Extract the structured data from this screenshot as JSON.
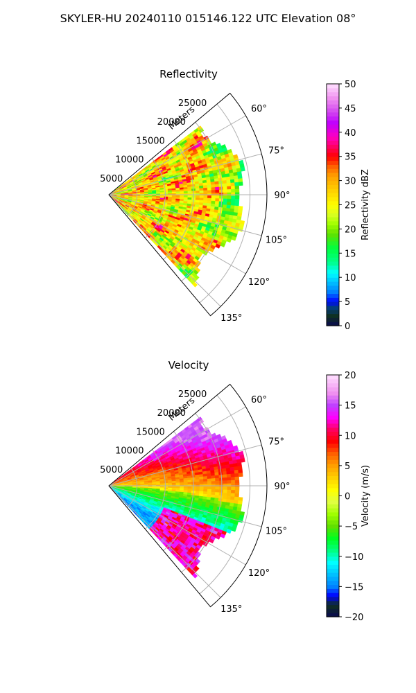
{
  "figure": {
    "suptitle": "SKYLER-HU  20240110  015146.122 UTC Elevation 08°"
  },
  "chart_data": [
    {
      "type": "heatmap",
      "projection": "polar-sector",
      "title": "Reflectivity",
      "range_label": "Meters",
      "range_ticks": [
        5000,
        10000,
        15000,
        20000,
        25000
      ],
      "range_tick_labels": [
        "5000",
        "10000",
        "15000",
        "20000",
        "25000"
      ],
      "azimuth_range_deg": [
        50,
        140
      ],
      "azimuth_ticks_deg": [
        60,
        75,
        90,
        105,
        120,
        135
      ],
      "azimuth_tick_labels": [
        "60°",
        "75°",
        "90°",
        "105°",
        "120°",
        "135°"
      ],
      "max_range_m": 28000,
      "grid": true,
      "colorbar": {
        "label": "Reflectivity dBZ",
        "range": [
          0,
          50
        ],
        "ticks": [
          0,
          5,
          10,
          15,
          20,
          25,
          30,
          35,
          40,
          45,
          50
        ],
        "tick_labels": [
          "0",
          "5",
          "10",
          "15",
          "20",
          "25",
          "30",
          "35",
          "40",
          "45",
          "50"
        ],
        "stops": [
          [
            0,
            "#0a0a50"
          ],
          [
            2,
            "#103020"
          ],
          [
            4,
            "#00408a"
          ],
          [
            5,
            "#0000ff"
          ],
          [
            7,
            "#0080ff"
          ],
          [
            9,
            "#00c0ff"
          ],
          [
            11,
            "#00ffff"
          ],
          [
            13,
            "#00ff90"
          ],
          [
            16,
            "#00ff40"
          ],
          [
            19,
            "#60e000"
          ],
          [
            21,
            "#a0ff00"
          ],
          [
            23,
            "#d8ff20"
          ],
          [
            25,
            "#ffff00"
          ],
          [
            28,
            "#ffd000"
          ],
          [
            31,
            "#ffa000"
          ],
          [
            33,
            "#ff6000"
          ],
          [
            35,
            "#ff0000"
          ],
          [
            37,
            "#ff0060"
          ],
          [
            39,
            "#ff00c0"
          ],
          [
            42,
            "#c000ff"
          ],
          [
            44,
            "#d040f0"
          ],
          [
            47,
            "#f090f0"
          ],
          [
            50,
            "#ffe0ff"
          ]
        ]
      }
    },
    {
      "type": "heatmap",
      "projection": "polar-sector",
      "title": "Velocity",
      "range_label": "Meters",
      "range_ticks": [
        5000,
        10000,
        15000,
        20000,
        25000
      ],
      "range_tick_labels": [
        "5000",
        "10000",
        "15000",
        "20000",
        "25000"
      ],
      "azimuth_range_deg": [
        50,
        140
      ],
      "azimuth_ticks_deg": [
        60,
        75,
        90,
        105,
        120,
        135
      ],
      "azimuth_tick_labels": [
        "60°",
        "75°",
        "90°",
        "105°",
        "120°",
        "135°"
      ],
      "max_range_m": 28000,
      "grid": true,
      "colorbar": {
        "label": "Velocity (m/s)",
        "range": [
          -20,
          20
        ],
        "ticks": [
          -20,
          -15,
          -10,
          -5,
          0,
          5,
          10,
          15,
          20
        ],
        "tick_labels": [
          "−20",
          "−15",
          "−10",
          "−5",
          "0",
          "5",
          "10",
          "15",
          "20"
        ],
        "stops": [
          [
            -20,
            "#0a0a50"
          ],
          [
            -18,
            "#103020"
          ],
          [
            -16.5,
            "#0000ff"
          ],
          [
            -15,
            "#0080ff"
          ],
          [
            -13,
            "#00c0ff"
          ],
          [
            -11,
            "#00ffff"
          ],
          [
            -9,
            "#00ff80"
          ],
          [
            -7,
            "#00ff20"
          ],
          [
            -5,
            "#60e000"
          ],
          [
            -3,
            "#a0ff00"
          ],
          [
            -1,
            "#e0ff40"
          ],
          [
            1,
            "#ffff00"
          ],
          [
            3,
            "#ffd000"
          ],
          [
            5,
            "#ffa000"
          ],
          [
            7,
            "#ff6000"
          ],
          [
            9,
            "#ff0000"
          ],
          [
            11,
            "#ff0060"
          ],
          [
            13,
            "#ff00ff"
          ],
          [
            15,
            "#c040ff"
          ],
          [
            17,
            "#f090f0"
          ],
          [
            20,
            "#ffe0ff"
          ]
        ]
      }
    }
  ]
}
